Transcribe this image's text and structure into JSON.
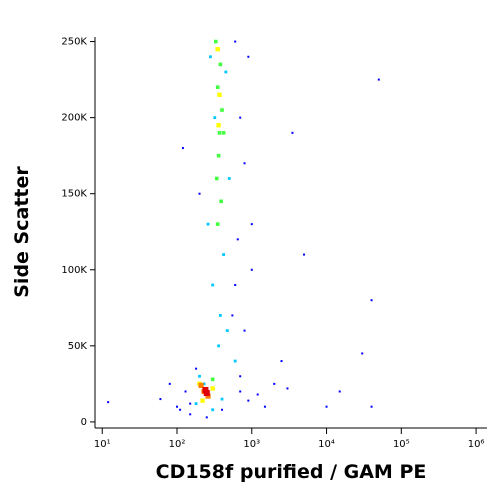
{
  "chart_data": {
    "type": "scatter",
    "x_label": "CD158f purified / GAM PE",
    "y_label": "Side Scatter",
    "xlog": true,
    "xlim": [
      8,
      1400000
    ],
    "ylim": [
      -4000,
      253000
    ],
    "xticks": [
      {
        "value": 10,
        "label": "10¹"
      },
      {
        "value": 100,
        "label": "10²"
      },
      {
        "value": 1000,
        "label": "10³"
      },
      {
        "value": 10000,
        "label": "10⁴"
      },
      {
        "value": 100000,
        "label": "10⁵"
      },
      {
        "value": 1000000,
        "label": "10⁶"
      }
    ],
    "yticks": [
      0,
      {
        "value": 50000,
        "label": "50K"
      },
      {
        "value": 100000,
        "label": "100K"
      },
      {
        "value": 150000,
        "label": "150K"
      },
      {
        "value": 200000,
        "label": "200K"
      },
      {
        "value": 250000,
        "label": "250K"
      }
    ],
    "series": [
      {
        "color": "#0000ff",
        "x": [
          60,
          80,
          110,
          150,
          700,
          900,
          1200,
          2000,
          3000,
          1500,
          800,
          120,
          200,
          600,
          1000,
          2500,
          50000,
          40000,
          30000,
          15000,
          5000,
          700,
          800,
          900,
          600,
          1000,
          200,
          150,
          700,
          650,
          550,
          180,
          400,
          250,
          130,
          10000,
          100,
          3500,
          40000,
          12
        ],
        "values": [
          15000,
          25000,
          8000,
          12000,
          20000,
          14000,
          18000,
          25000,
          22000,
          10000,
          60000,
          180000,
          150000,
          90000,
          130000,
          40000,
          225000,
          80000,
          45000,
          20000,
          110000,
          200000,
          170000,
          240000,
          250000,
          100000,
          30000,
          5000,
          30000,
          120000,
          70000,
          35000,
          8000,
          3000,
          20000,
          10000,
          10000,
          190000,
          10000,
          13000
        ]
      },
      {
        "color": "#00c8ff",
        "x": [
          280,
          450,
          320,
          500,
          260,
          420,
          300,
          380,
          360,
          470,
          200,
          180,
          300,
          400,
          230,
          600
        ],
        "values": [
          240000,
          230000,
          200000,
          160000,
          130000,
          110000,
          90000,
          70000,
          50000,
          60000,
          30000,
          12000,
          8000,
          15000,
          25000,
          40000
        ]
      },
      {
        "color": "#40ff40",
        "x": [
          330,
          380,
          350,
          400,
          370,
          360,
          340,
          390,
          420,
          300,
          350
        ],
        "values": [
          250000,
          235000,
          220000,
          205000,
          190000,
          175000,
          160000,
          145000,
          190000,
          28000,
          130000
        ]
      },
      {
        "color": "#ffff00",
        "x": [
          350,
          370,
          360,
          300,
          200,
          220
        ],
        "values": [
          245000,
          215000,
          195000,
          22000,
          25000,
          14000
        ]
      },
      {
        "color": "#ff8000",
        "x": [
          230,
          260,
          210
        ],
        "values": [
          20000,
          17000,
          24000
        ]
      },
      {
        "color": "#e00000",
        "x": [
          250,
          240
        ],
        "values": [
          19000,
          21000
        ]
      }
    ]
  }
}
